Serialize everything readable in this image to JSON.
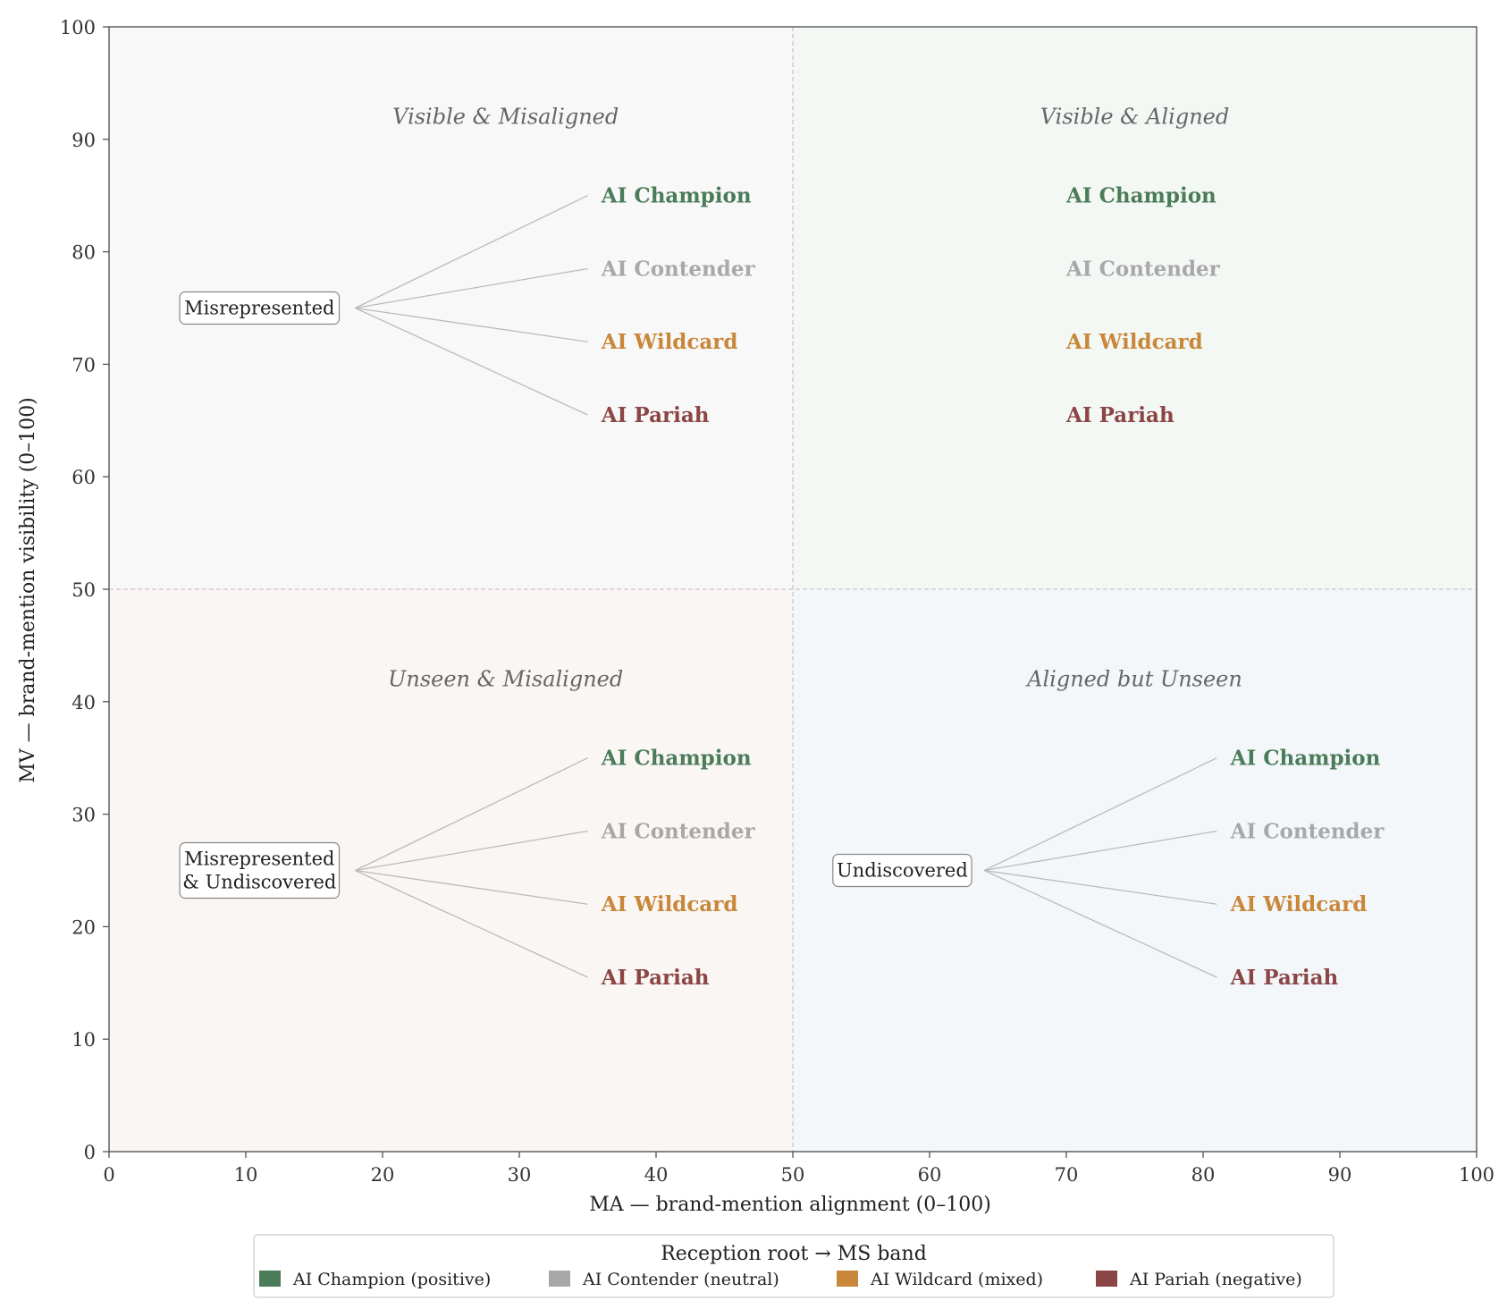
{
  "chart_data": {
    "type": "scatter",
    "title": "",
    "xlabel": "MA — brand-mention alignment (0–100)",
    "ylabel": "MV — brand-mention visibility (0–100)",
    "xlim": [
      0,
      100
    ],
    "ylim": [
      0,
      100
    ],
    "xticks": [
      0,
      10,
      20,
      30,
      40,
      50,
      60,
      70,
      80,
      90,
      100
    ],
    "yticks": [
      0,
      10,
      20,
      30,
      40,
      50,
      60,
      70,
      80,
      90,
      100
    ],
    "threshold_x": 50,
    "threshold_y": 50,
    "grid": false,
    "quadrants": [
      {
        "name": "Visible & Misaligned",
        "x_range": [
          0,
          50
        ],
        "y_range": [
          50,
          100
        ],
        "color": "#f8f8f8",
        "label_x": 29,
        "label_y": 92
      },
      {
        "name": "Visible & Aligned",
        "x_range": [
          50,
          100
        ],
        "y_range": [
          50,
          100
        ],
        "color": "#f4f8f4",
        "label_x": 75,
        "label_y": 92
      },
      {
        "name": "Unseen & Misaligned",
        "x_range": [
          0,
          50
        ],
        "y_range": [
          0,
          50
        ],
        "color": "#faf6f4",
        "label_x": 29,
        "label_y": 42
      },
      {
        "name": "Aligned but Unseen",
        "x_range": [
          50,
          100
        ],
        "y_range": [
          0,
          50
        ],
        "color": "#f4f7fa",
        "label_x": 75,
        "label_y": 42
      }
    ],
    "bands": [
      {
        "name": "AI Champion",
        "color": "#4a7c59"
      },
      {
        "name": "AI Contender",
        "color": "#a8a8a8"
      },
      {
        "name": "AI Wildcard",
        "color": "#c8873a"
      },
      {
        "name": "AI Pariah",
        "color": "#8b4545"
      }
    ],
    "band_groups": [
      {
        "root": null,
        "text_x": 70,
        "y": [
          85,
          78.5,
          72,
          65.5
        ]
      },
      {
        "root": {
          "lines": [
            "Misrepresented"
          ],
          "x": 11,
          "y": 75
        },
        "fan_x": 18,
        "fan_end_x": 35,
        "text_x": 36,
        "y": [
          85,
          78.5,
          72,
          65.5
        ]
      },
      {
        "root": {
          "lines": [
            "Misrepresented",
            "& Undiscovered"
          ],
          "x": 11,
          "y": 25
        },
        "fan_x": 18,
        "fan_end_x": 35,
        "text_x": 36,
        "y": [
          35,
          28.5,
          22,
          15.5
        ]
      },
      {
        "root": {
          "lines": [
            "Undiscovered"
          ],
          "x": 58,
          "y": 25
        },
        "fan_x": 64,
        "fan_end_x": 81,
        "text_x": 82,
        "y": [
          35,
          28.5,
          22,
          15.5
        ]
      }
    ],
    "legend": {
      "title": "Reception root → MS band",
      "position": "bottom-center",
      "entries": [
        {
          "label": "AI Champion (positive)",
          "color": "#4a7c59"
        },
        {
          "label": "AI Contender (neutral)",
          "color": "#a8a8a8"
        },
        {
          "label": "AI Wildcard (mixed)",
          "color": "#c8873a"
        },
        {
          "label": "AI Pariah (negative)",
          "color": "#8b4545"
        }
      ]
    }
  }
}
